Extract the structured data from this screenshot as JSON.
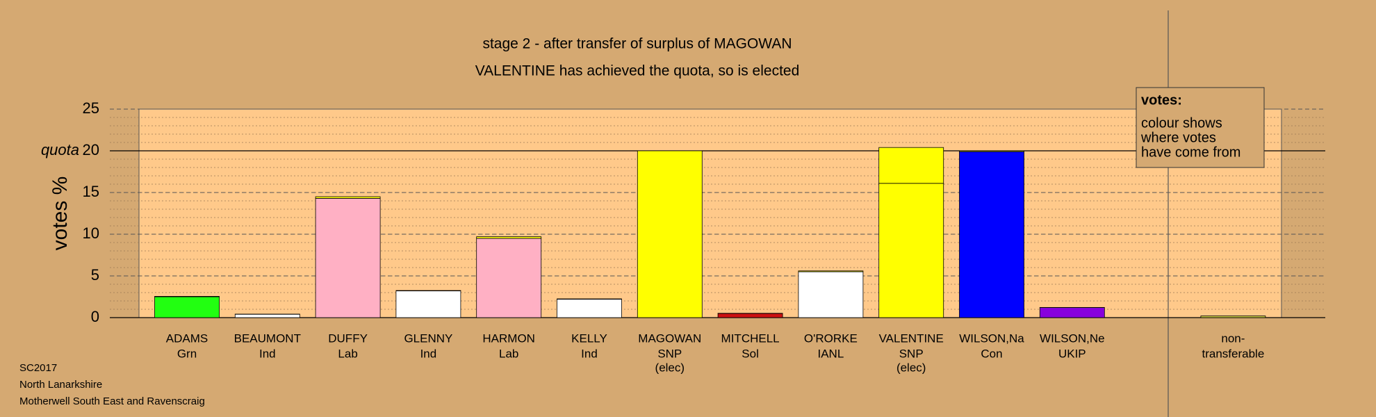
{
  "chart_data": {
    "type": "bar",
    "title": "stage 2 - after transfer of surplus of MAGOWAN",
    "subtitle": "VALENTINE has achieved the quota, so is elected",
    "y_label": "votes %",
    "categories": [
      "ADAMS",
      "BEAUMONT",
      "DUFFY",
      "GLENNY",
      "HARMON",
      "KELLY",
      "MAGOWAN",
      "MITCHELL",
      "O'RORKE",
      "VALENTINE",
      "WILSON,Na",
      "WILSON,Ne",
      "non-"
    ],
    "parties": [
      "Grn",
      "Ind",
      "Lab",
      "Ind",
      "Lab",
      "Ind",
      "SNP",
      "Sol",
      "IANL",
      "SNP",
      "Con",
      "UKIP",
      "transferable"
    ],
    "notes": [
      null,
      null,
      null,
      null,
      null,
      null,
      "(elec)",
      null,
      null,
      "(elec)",
      null,
      null,
      null
    ],
    "values": [
      2.5,
      0.4,
      14.3,
      3.2,
      9.5,
      2.2,
      20,
      0.5,
      5.5,
      16.1,
      19.9,
      1.2,
      0.2
    ],
    "colors": [
      "#22ff11",
      "#ffffff",
      "#ffb0c4",
      "#ffffff",
      "#ffb0c4",
      "#ffffff",
      "#ffff00",
      "#cc1111",
      "#ffffff",
      "#ffff00",
      "#0000ff",
      "#8800dd",
      "#cccc44"
    ],
    "transfers": [
      0.05,
      0.02,
      0.2,
      0.05,
      0.2,
      0.05,
      0,
      0.02,
      0.1,
      4.3,
      0.1,
      0.02,
      0
    ],
    "transfer_color": "#ffff00",
    "ylim": [
      0,
      25
    ],
    "yticks": [
      0,
      5,
      10,
      15,
      20,
      25
    ],
    "minor_step": 1,
    "quota": {
      "value": 20,
      "label": "quota"
    },
    "legend_lines": [
      "votes:",
      "colour shows",
      "where votes",
      "have come from"
    ],
    "footer": [
      "SC2017",
      "North Lanarkshire",
      "Motherwell South East and Ravenscraig"
    ]
  }
}
